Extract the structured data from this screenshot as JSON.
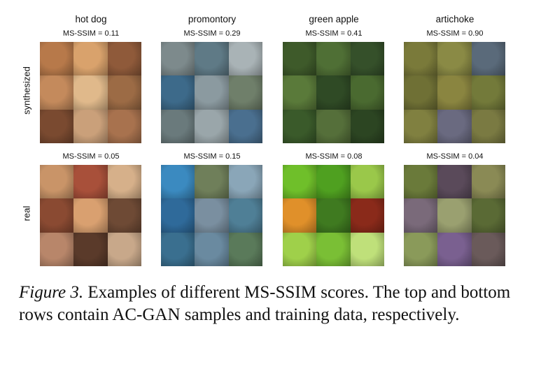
{
  "columns": [
    {
      "title": "hot dog",
      "synth_score": "MS-SSIM = 0.11",
      "real_score": "MS-SSIM = 0.05"
    },
    {
      "title": "promontory",
      "synth_score": "MS-SSIM = 0.29",
      "real_score": "MS-SSIM = 0.15"
    },
    {
      "title": "green apple",
      "synth_score": "MS-SSIM = 0.41",
      "real_score": "MS-SSIM = 0.08"
    },
    {
      "title": "artichoke",
      "synth_score": "MS-SSIM = 0.90",
      "real_score": "MS-SSIM = 0.04"
    }
  ],
  "rows": {
    "synthesized_label": "synthesized",
    "real_label": "real"
  },
  "caption": {
    "figure_label": "Figure 3.",
    "text": " Examples of different MS-SSIM scores.  The top and bottom rows contain AC-GAN samples and training data, respectively."
  },
  "palettes": {
    "hotdog_synth": [
      "#b7794a",
      "#d9a26c",
      "#8f5a3a",
      "#c48a5c",
      "#e0b98b",
      "#9c6b45",
      "#7a4a30",
      "#caa07a",
      "#a8724e"
    ],
    "hotdog_real": [
      "#c99468",
      "#a8503a",
      "#d6b08a",
      "#8a4a32",
      "#d9a070",
      "#6e4a35",
      "#b8866a",
      "#5a3a2a",
      "#c8a88a"
    ],
    "prom_synth": [
      "#7d8a8c",
      "#5f7a86",
      "#a9b3b6",
      "#3d6a8a",
      "#8b9aa0",
      "#6f7f6a",
      "#6a7a7c",
      "#9aa6aa",
      "#4a6f8f"
    ],
    "prom_real": [
      "#3b8ac0",
      "#6f7f5a",
      "#8aa6b8",
      "#2f6a9a",
      "#7a8fa0",
      "#4f7f96",
      "#3a6f8f",
      "#6a8aa0",
      "#5a7a5a"
    ],
    "apple_synth": [
      "#3e5a2a",
      "#4f6f35",
      "#35502a",
      "#5a7a3a",
      "#2f4a25",
      "#4a6a30",
      "#3a5a2a",
      "#556f3a",
      "#2c4522"
    ],
    "apple_real": [
      "#6fbf2a",
      "#4fa020",
      "#9ac84a",
      "#e0902a",
      "#3f7a20",
      "#8a2a1a",
      "#9fd04a",
      "#7abf35",
      "#bfe07a"
    ],
    "art_synth": [
      "#7a7a3a",
      "#8a8a45",
      "#5a6a7a",
      "#6f7035",
      "#8a8540",
      "#737a3a",
      "#808040",
      "#6a6a80",
      "#7a7a42"
    ],
    "art_real": [
      "#6a7a3a",
      "#5a4a5a",
      "#8a8a55",
      "#7a6a7a",
      "#9aa070",
      "#5a6a35",
      "#8a9a5a",
      "#7a6090",
      "#6a5a5a"
    ]
  }
}
